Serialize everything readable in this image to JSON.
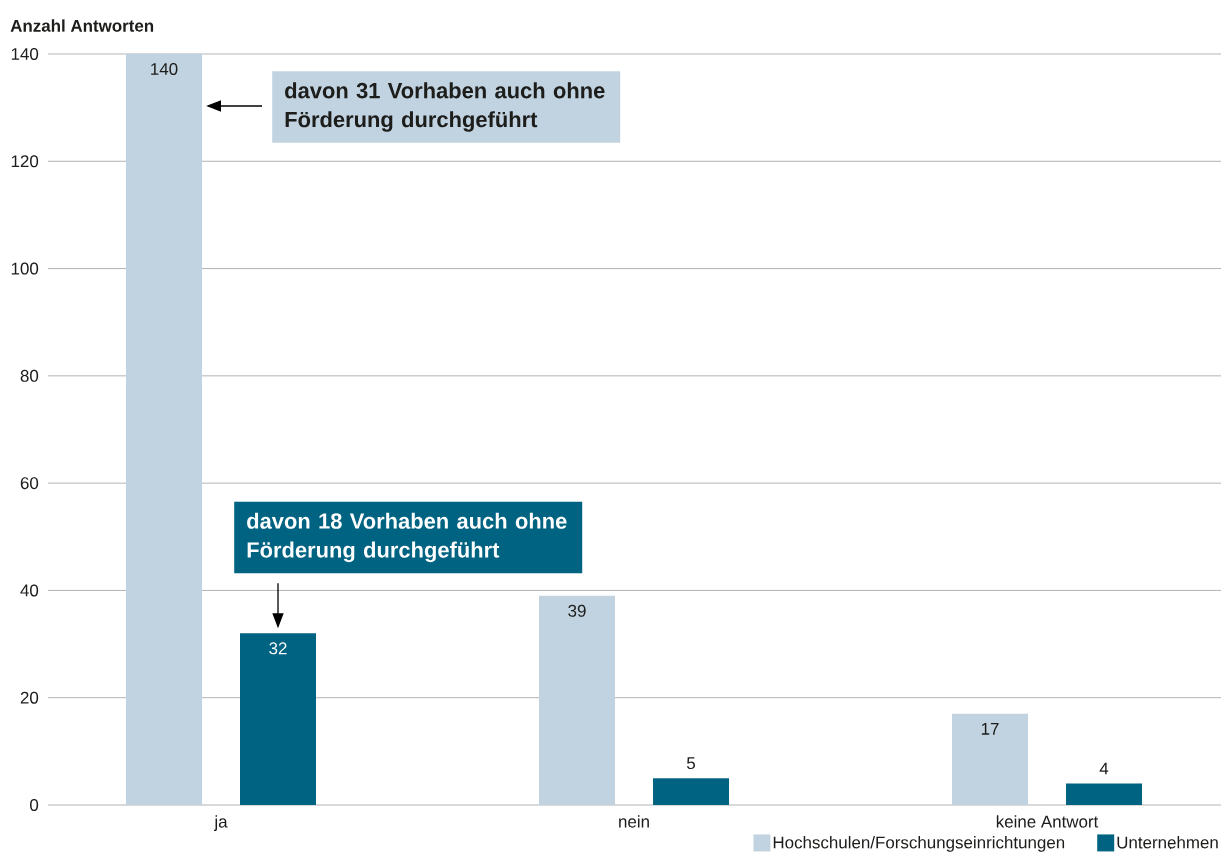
{
  "chart_data": {
    "type": "bar",
    "ylabel": "Anzahl Antworten",
    "categories": [
      "ja",
      "nein",
      "keine Antwort"
    ],
    "series": [
      {
        "name": "Hochschulen/Forschungseinrichtungen",
        "color": "#c1d3e0",
        "values": [
          140,
          39,
          17
        ]
      },
      {
        "name": "Unternehmen",
        "color": "#006382",
        "values": [
          32,
          5,
          4
        ]
      }
    ],
    "ylim": [
      0,
      140
    ],
    "yticks": [
      0,
      20,
      40,
      60,
      80,
      100,
      120,
      140
    ],
    "grid": "y",
    "legend": "bottom right",
    "data_labels": true,
    "annotations": [
      "davon 31 Vorhaben auch ohne Förderung durchgeführt",
      "davon 18 Vorhaben auch ohne Förderung durchgeführt"
    ]
  }
}
